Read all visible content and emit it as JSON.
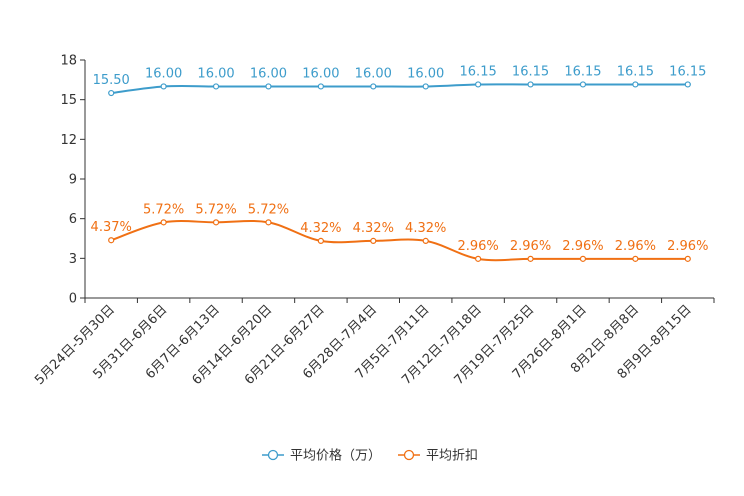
{
  "chart_data": {
    "type": "line",
    "title": "",
    "xlabel": "",
    "ylabel": "",
    "ylim": [
      0,
      18
    ],
    "yticks": [
      0,
      3,
      6,
      9,
      12,
      15,
      18
    ],
    "grid": false,
    "legend_position": "bottom-center",
    "categories": [
      "5月24日-5月30日",
      "5月31日-6月6日",
      "6月7日-6月13日",
      "6月14日-6月20日",
      "6月21日-6月27日",
      "6月28日-7月4日",
      "7月5日-7月11日",
      "7月12日-7月18日",
      "7月19日-7月25日",
      "7月26日-8月1日",
      "8月2日-8月8日",
      "8月9日-8月15日"
    ],
    "series": [
      {
        "name": "平均价格（万）",
        "color": "#3d9ccb",
        "values": [
          15.5,
          16.0,
          16.0,
          16.0,
          16.0,
          16.0,
          16.0,
          16.15,
          16.15,
          16.15,
          16.15,
          16.15
        ],
        "labels": [
          "15.50",
          "16.00",
          "16.00",
          "16.00",
          "16.00",
          "16.00",
          "16.00",
          "16.15",
          "16.15",
          "16.15",
          "16.15",
          "16.15"
        ]
      },
      {
        "name": "平均折扣",
        "color": "#f07014",
        "values": [
          4.37,
          5.72,
          5.72,
          5.72,
          4.32,
          4.32,
          4.32,
          2.96,
          2.96,
          2.96,
          2.96,
          2.96
        ],
        "labels": [
          "4.37%",
          "5.72%",
          "5.72%",
          "5.72%",
          "4.32%",
          "4.32%",
          "4.32%",
          "2.96%",
          "2.96%",
          "2.96%",
          "2.96%",
          "2.96%"
        ]
      }
    ]
  }
}
